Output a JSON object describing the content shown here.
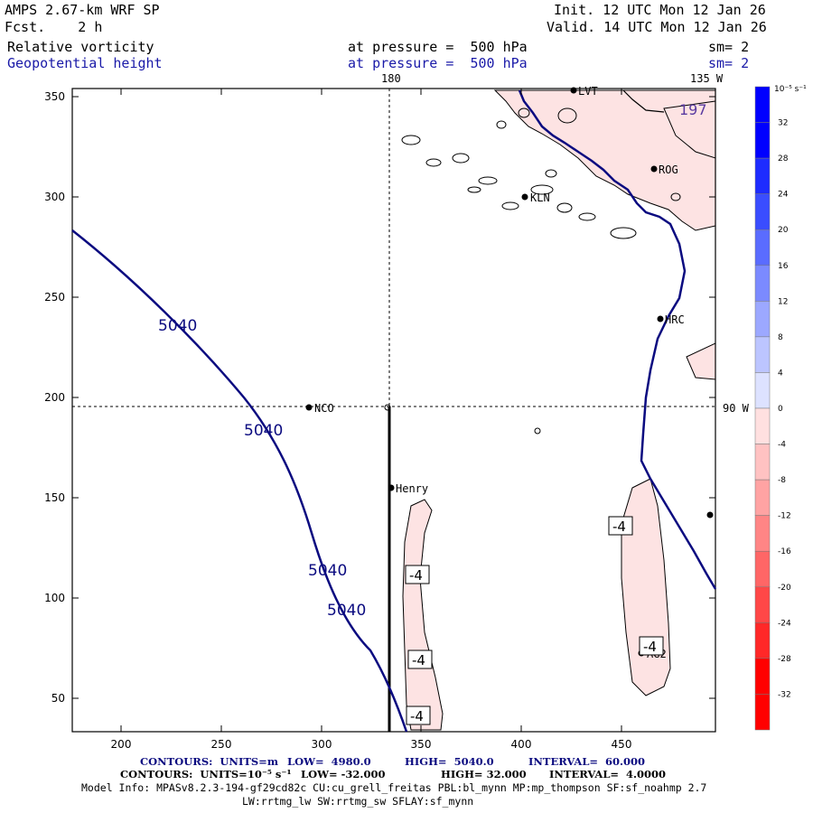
{
  "header": {
    "model": "AMPS 2.67-km WRF SP",
    "fcst": "Fcst.    2 h",
    "init": "Init. 12 UTC Mon 12 Jan 26",
    "valid": "Valid. 14 UTC Mon 12 Jan 26",
    "field1_name": "Relative vorticity",
    "field1_level": "at pressure =  500 hPa",
    "field1_sm": "sm= 2",
    "field2_name": "Geopotential height",
    "field2_level": "at pressure =  500 hPa",
    "field2_sm": "sm= 2"
  },
  "map": {
    "meridian_label_top": "180",
    "meridian_label_right_top": "135 W",
    "meridian_label_right": "90 W",
    "x_ticks": [
      "200",
      "250",
      "300",
      "350",
      "400",
      "450"
    ],
    "y_ticks": [
      "350",
      "300",
      "250",
      "200",
      "150",
      "100",
      "50"
    ],
    "stations": [
      {
        "id": "LVT",
        "label": "LVT"
      },
      {
        "id": "ROG",
        "label": "ROG"
      },
      {
        "id": "KLN",
        "label": "KLN"
      },
      {
        "id": "HRC",
        "label": "HRC"
      },
      {
        "id": "NCO",
        "label": "NCO"
      },
      {
        "id": "Henry",
        "label": "Henry"
      },
      {
        "id": "AG2",
        "label": "AG2"
      }
    ],
    "height_contour_labels": [
      "5040",
      "5040",
      "5040",
      "5040"
    ],
    "vort_contour_labels": [
      "-4",
      "-4",
      "-4",
      "-4",
      "-4"
    ],
    "corner_label": "197"
  },
  "colorbar": {
    "units": "10⁻⁵ s⁻¹",
    "levels": [
      "32",
      "28",
      "24",
      "20",
      "16",
      "12",
      "8",
      "4",
      "0",
      "-4",
      "-8",
      "-12",
      "-16",
      "-20",
      "-24",
      "-28",
      "-32"
    ],
    "colors": [
      "#0000ff",
      "#1e2cff",
      "#3a4dff",
      "#5a6cff",
      "#7b8aff",
      "#9ca8ff",
      "#bcc5ff",
      "#dde2ff",
      "#ffffff",
      "#ffe0e0",
      "#ffc2c2",
      "#ffa3a3",
      "#ff8585",
      "#ff6666",
      "#ff4747",
      "#ff2828",
      "#ff0000"
    ]
  },
  "footer": {
    "contours1_label": "CONTOURS:  UNITS=m",
    "contours1_low": "LOW=  4980.0",
    "contours1_high": "HIGH=  5040.0",
    "contours1_interval": "INTERVAL=  60.000",
    "contours2_label": "CONTOURS:  UNITS=10⁻⁵ s⁻¹",
    "contours2_low": "LOW= -32.000",
    "contours2_high": "HIGH= 32.000",
    "contours2_interval": "INTERVAL=  4.0000",
    "model_info": "Model Info: MPASv8.2.3-194-gf29cd82c CU:cu_grell_freitas PBL:bl_mynn MP:mp_thompson SF:sf_noahmp 2.7",
    "model_info2": "LW:rrtmg_lw SW:rrtmg_sw SFLAY:sf_mynn"
  }
}
